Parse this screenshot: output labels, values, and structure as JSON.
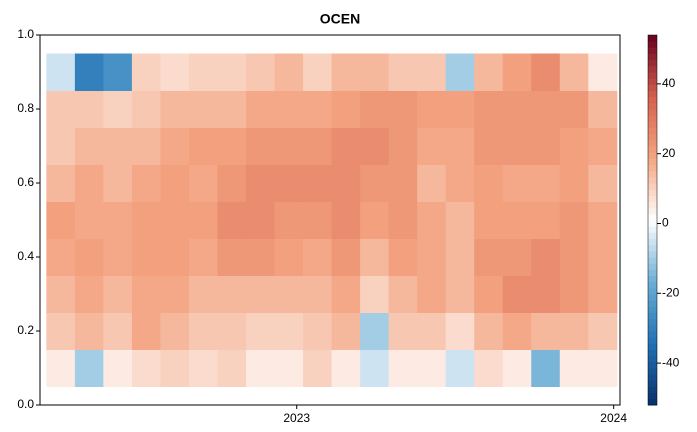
{
  "chart_data": {
    "type": "heatmap",
    "title": "OCEN",
    "x": [
      2022.255,
      2022.345,
      2022.435,
      2022.525,
      2022.615,
      2022.705,
      2022.795,
      2022.885,
      2022.975,
      2023.065,
      2023.155,
      2023.245,
      2023.335,
      2023.425,
      2023.515,
      2023.605,
      2023.695,
      2023.785,
      2023.875,
      2023.965
    ],
    "y": [
      0.1,
      0.2,
      0.3,
      0.4,
      0.5,
      0.6,
      0.7,
      0.8,
      0.9
    ],
    "z": [
      [
        5,
        -10,
        5,
        8,
        10,
        8,
        10,
        5,
        5,
        10,
        5,
        -5,
        5,
        5,
        -5,
        8,
        5,
        -15,
        5,
        5
      ],
      [
        12,
        15,
        12,
        18,
        15,
        12,
        12,
        10,
        10,
        12,
        15,
        -10,
        12,
        12,
        8,
        15,
        18,
        15,
        15,
        12
      ],
      [
        15,
        18,
        15,
        18,
        18,
        15,
        15,
        15,
        15,
        15,
        18,
        10,
        15,
        18,
        15,
        20,
        25,
        25,
        22,
        18
      ],
      [
        18,
        20,
        18,
        20,
        20,
        18,
        22,
        22,
        20,
        18,
        22,
        15,
        20,
        18,
        15,
        22,
        22,
        25,
        22,
        18
      ],
      [
        20,
        18,
        18,
        20,
        20,
        20,
        25,
        25,
        22,
        22,
        25,
        20,
        22,
        18,
        15,
        20,
        20,
        20,
        22,
        18
      ],
      [
        15,
        18,
        15,
        18,
        20,
        18,
        22,
        25,
        25,
        25,
        25,
        22,
        22,
        15,
        18,
        20,
        18,
        18,
        20,
        15
      ],
      [
        12,
        15,
        15,
        15,
        18,
        20,
        20,
        22,
        22,
        22,
        25,
        25,
        22,
        18,
        18,
        22,
        22,
        22,
        20,
        18
      ],
      [
        12,
        12,
        10,
        12,
        15,
        15,
        15,
        18,
        18,
        18,
        20,
        22,
        22,
        20,
        20,
        22,
        22,
        22,
        22,
        15
      ],
      [
        -5,
        -30,
        -25,
        10,
        8,
        10,
        10,
        12,
        15,
        10,
        15,
        15,
        12,
        12,
        -10,
        15,
        20,
        25,
        15,
        5
      ]
    ],
    "xlim": [
      2022.19,
      2024.02
    ],
    "xticks": [
      2023,
      2024
    ],
    "ylim": [
      0,
      1
    ],
    "yticks": [
      {
        "value": 0,
        "label": "0.0"
      },
      0.2,
      0.4,
      0.6,
      0.8,
      {
        "value": 1,
        "label": "1.0"
      }
    ],
    "zlim": [
      -52,
      54
    ],
    "colorbar_ticks": [
      40,
      20,
      0,
      -20,
      -40
    ],
    "colorscale": [
      "#08306b",
      "#2171b5",
      "#6baed6",
      "#ffffff",
      "#f4a582",
      "#d6604d",
      "#67001f"
    ]
  }
}
